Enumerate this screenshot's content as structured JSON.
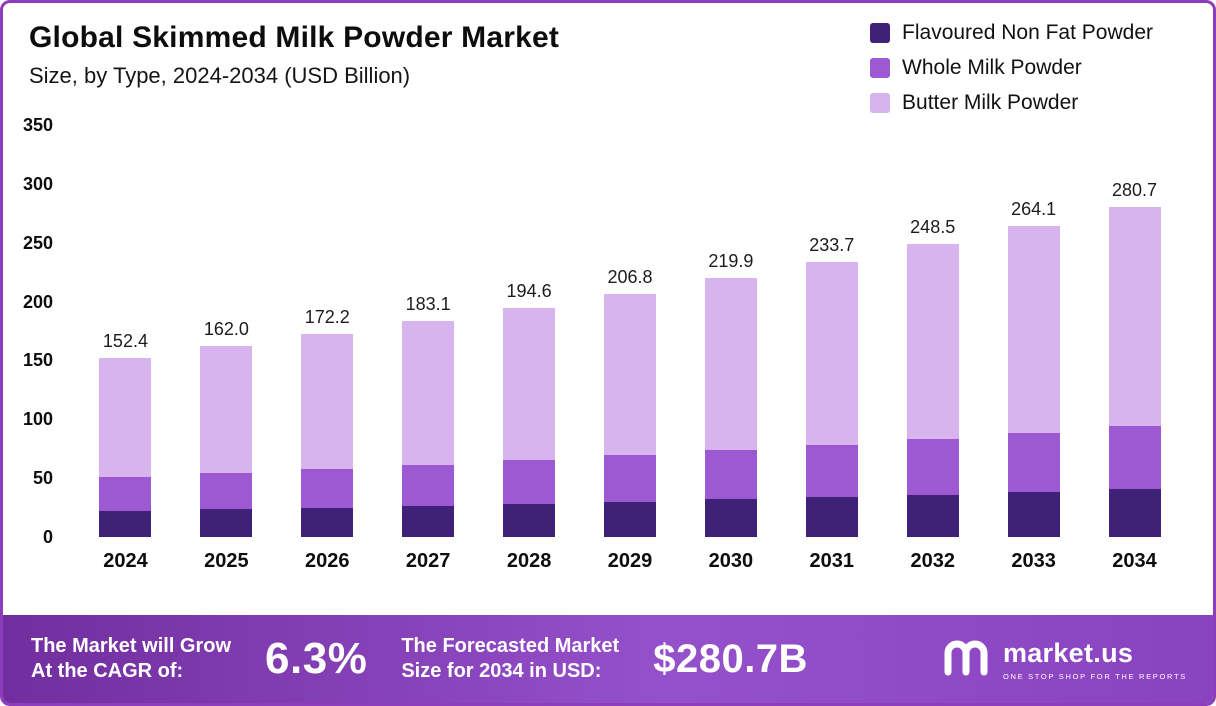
{
  "header": {
    "title": "Global Skimmed Milk Powder Market",
    "subtitle": "Size, by Type, 2024-2034 (USD Billion)"
  },
  "chart_data": {
    "type": "bar",
    "stacked": true,
    "title": "Global Skimmed Milk Powder Market Size, by Type, 2024-2034 (USD Billion)",
    "xlabel": "",
    "ylabel": "USD Billion",
    "ylim": [
      0,
      350
    ],
    "yticks": [
      0,
      50,
      100,
      150,
      200,
      250,
      300,
      350
    ],
    "grid": false,
    "legend_position": "top-right",
    "categories": [
      "2024",
      "2025",
      "2026",
      "2027",
      "2028",
      "2029",
      "2030",
      "2031",
      "2032",
      "2033",
      "2034"
    ],
    "series": [
      {
        "name": "Flavoured Non Fat Powder",
        "color": "#3f2277",
        "values": [
          22.1,
          23.5,
          25.0,
          26.5,
          28.2,
          30.0,
          31.9,
          33.9,
          36.0,
          38.3,
          40.7
        ]
      },
      {
        "name": "Whole Milk Powder",
        "color": "#9c59d1",
        "values": [
          29.0,
          30.8,
          32.7,
          34.8,
          37.0,
          39.3,
          41.8,
          44.4,
          47.2,
          50.2,
          53.3
        ]
      },
      {
        "name": "Butter Milk Powder",
        "color": "#d8b4ee",
        "values": [
          101.3,
          107.7,
          114.5,
          121.8,
          129.4,
          137.5,
          146.2,
          155.4,
          165.3,
          175.6,
          186.7
        ]
      }
    ],
    "totals": [
      152.4,
      162.0,
      172.2,
      183.1,
      194.6,
      206.8,
      219.9,
      233.7,
      248.5,
      264.1,
      280.7
    ]
  },
  "footer": {
    "growth": {
      "line1": "The Market will Grow",
      "line2": "At the CAGR of:",
      "value": "6.3%"
    },
    "forecast": {
      "line1": "The Forecasted Market",
      "line2": "Size for 2034 in USD:",
      "value": "$280.7B"
    },
    "brand": {
      "name": "market.us",
      "tagline": "ONE STOP SHOP FOR THE REPORTS"
    }
  },
  "colors": {
    "frame_border": "#8b3dbb",
    "banner_gradient_start": "#722e9e",
    "banner_gradient_end": "#8a43c0"
  }
}
